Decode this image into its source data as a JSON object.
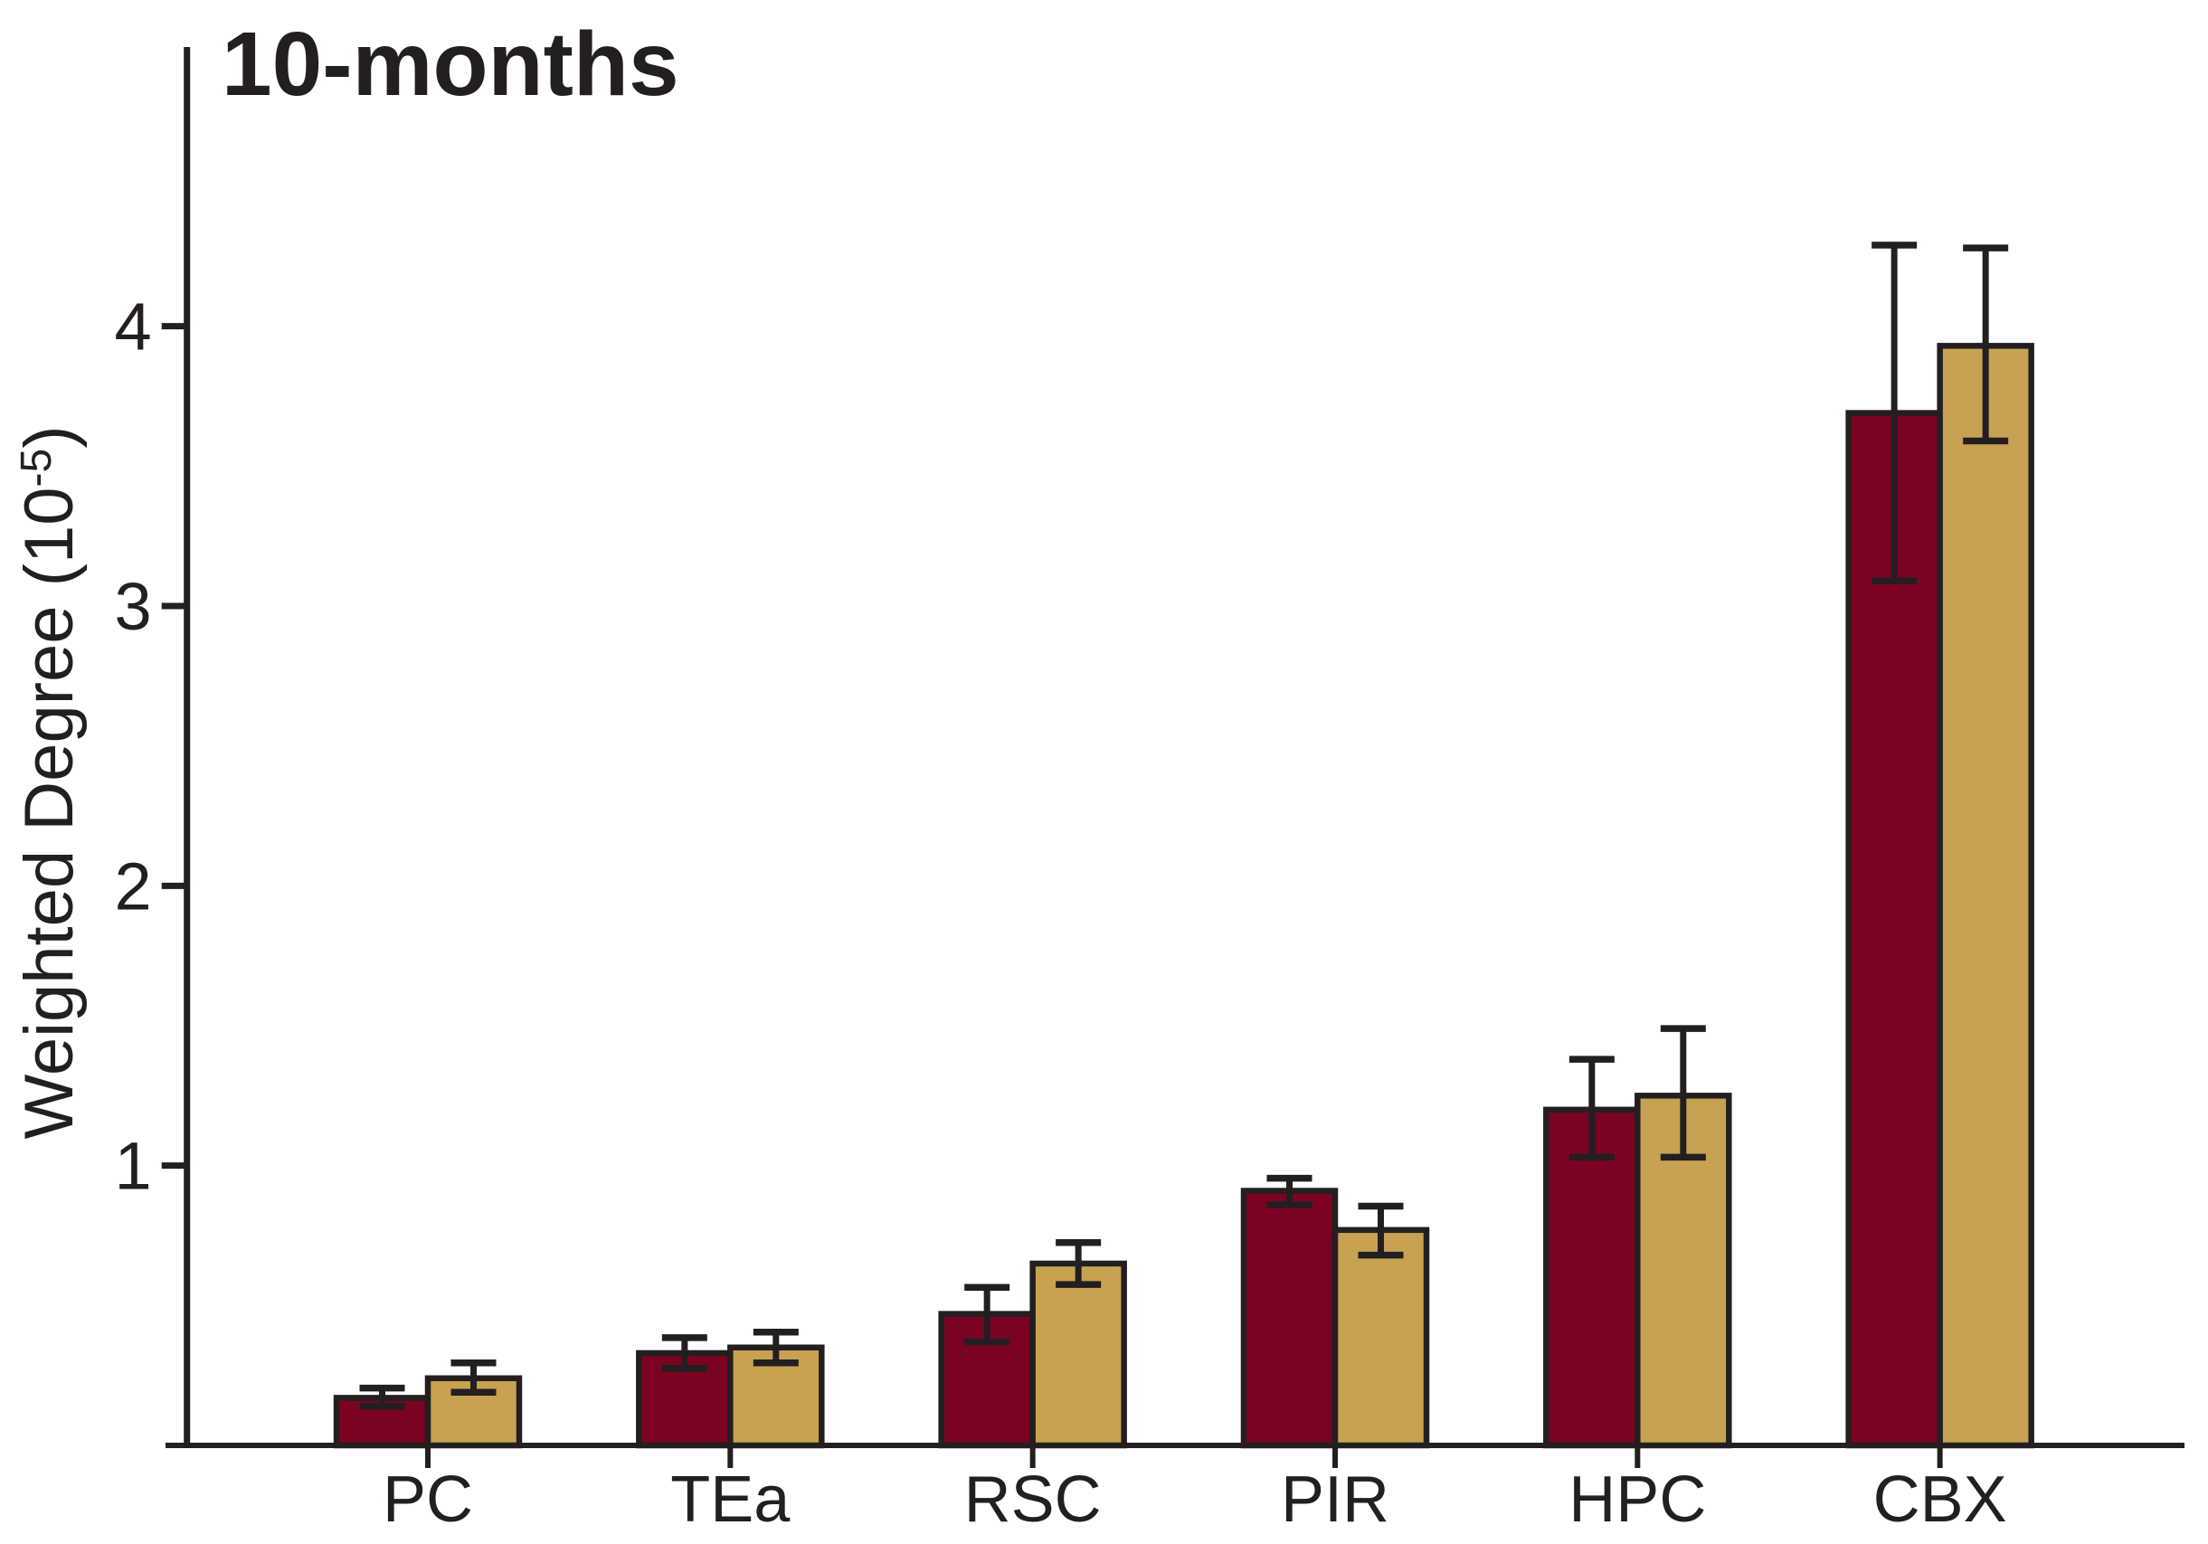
{
  "chart_data": {
    "type": "bar",
    "title": "10-months",
    "ylabel": {
      "text": "Weighted Degree (10",
      "sup": "-5",
      "end": ")"
    },
    "xlabel": "",
    "categories": [
      "PC",
      "TEa",
      "RSC",
      "PIR",
      "HPC",
      "CBX"
    ],
    "yticks": [
      "1",
      "2",
      "3",
      "4"
    ],
    "ylim": [
      0,
      5
    ],
    "grid": false,
    "legend": "none",
    "axis_color": "#231F20",
    "series": [
      {
        "id": "red",
        "color": "#7B0321",
        "values": [
          0.17,
          0.33,
          0.47,
          0.91,
          1.2,
          3.69
        ],
        "err_lo": [
          0.14,
          0.275,
          0.37,
          0.86,
          1.03,
          3.09
        ],
        "err_hi": [
          0.205,
          0.385,
          0.565,
          0.955,
          1.38,
          4.29
        ]
      },
      {
        "id": "tan",
        "color": "#C7A252",
        "values": [
          0.24,
          0.35,
          0.65,
          0.77,
          1.25,
          3.93
        ],
        "err_lo": [
          0.19,
          0.295,
          0.575,
          0.68,
          1.03,
          3.59
        ],
        "err_hi": [
          0.295,
          0.405,
          0.725,
          0.855,
          1.49,
          4.28
        ]
      }
    ]
  }
}
